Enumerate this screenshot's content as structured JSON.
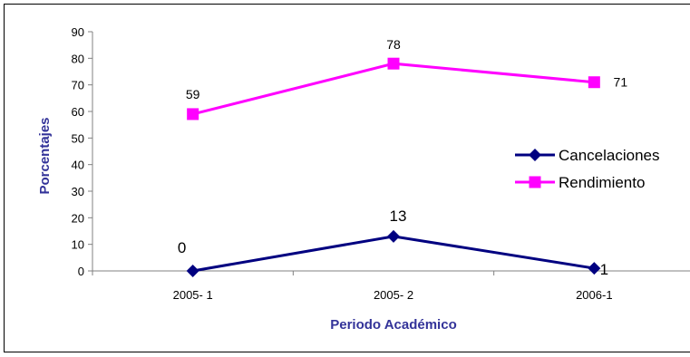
{
  "chart_data": {
    "type": "line",
    "categories": [
      "2005- 1",
      "2005- 2",
      "2006-1"
    ],
    "series": [
      {
        "name": "Cancelaciones",
        "values": [
          0,
          13,
          1
        ],
        "color": "#000080",
        "marker": "diamond"
      },
      {
        "name": "Rendimiento",
        "values": [
          59,
          78,
          71
        ],
        "color": "#ff00ff",
        "marker": "square"
      }
    ],
    "xlabel": "Periodo Académico",
    "ylabel": "Porcentajes",
    "ylim": [
      0,
      90
    ],
    "yticks": [
      0,
      10,
      20,
      30,
      40,
      50,
      60,
      70,
      80,
      90
    ],
    "grid": false,
    "legend_position": "right",
    "axis_title_color": "#333399"
  }
}
